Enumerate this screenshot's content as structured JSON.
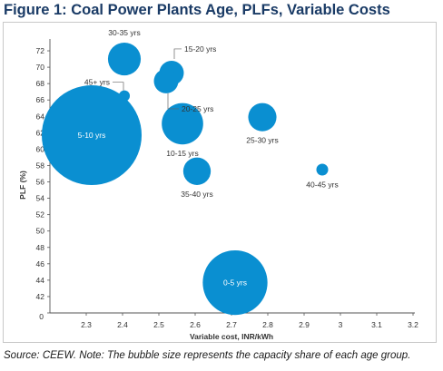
{
  "figure": {
    "title": "Figure 1: Coal Power Plants Age, PLFs, Variable Costs",
    "source_note": "Source: CEEW. Note: The bubble size represents the capacity share of each age group."
  },
  "chart_data": {
    "type": "scatter",
    "variant": "bubble",
    "title": "",
    "xlabel": "Variable cost, INR/kWh",
    "ylabel": "PLF (%)",
    "xlim": [
      2.2,
      3.2
    ],
    "ylim": [
      40,
      73
    ],
    "x_ticks": [
      2.3,
      2.4,
      2.5,
      2.6,
      2.7,
      2.8,
      2.9,
      3.0,
      3.1,
      3.2
    ],
    "x_tick_labels": [
      "2.3",
      "2.4",
      "2.5",
      "2.6",
      "2.7",
      "2.8",
      "2.9",
      "3",
      "3.1",
      "3.2"
    ],
    "y_ticks": [
      40,
      42,
      44,
      46,
      48,
      50,
      52,
      54,
      56,
      58,
      60,
      62,
      64,
      66,
      68,
      70,
      72
    ],
    "y_tick_labels": [
      "",
      "42",
      "44",
      "46",
      "48",
      "50",
      "52",
      "54",
      "56",
      "58",
      "60",
      "62",
      "64",
      "66",
      "68",
      "70",
      "72"
    ],
    "origin_label": "0",
    "grid": false,
    "bubble_color": "#0a8fd1",
    "label_color_inside": "#ffffff",
    "label_color_outside": "#333333",
    "points": [
      {
        "label": "30-35 yrs",
        "x": 2.405,
        "y": 71.0,
        "size": 2.7,
        "label_pos": "above"
      },
      {
        "label": "15-20 yrs",
        "x": 2.535,
        "y": 69.3,
        "size": 1.5,
        "label_pos": "callout-upper-right"
      },
      {
        "label": "20-25 yrs",
        "x": 2.52,
        "y": 68.3,
        "size": 1.5,
        "label_pos": "callout-lower-right"
      },
      {
        "label": "45+ yrs",
        "x": 2.405,
        "y": 66.5,
        "size": 0.3,
        "label_pos": "callout-upper-left"
      },
      {
        "label": "5-10 yrs",
        "x": 2.315,
        "y": 61.7,
        "size": 25.0,
        "label_pos": "inside"
      },
      {
        "label": "10-15 yrs",
        "x": 2.565,
        "y": 63.1,
        "size": 4.3,
        "label_pos": "below"
      },
      {
        "label": "25-30 yrs",
        "x": 2.785,
        "y": 63.9,
        "size": 2.0,
        "label_pos": "below"
      },
      {
        "label": "35-40 yrs",
        "x": 2.605,
        "y": 57.3,
        "size": 1.9,
        "label_pos": "below"
      },
      {
        "label": "40-45 yrs",
        "x": 2.95,
        "y": 57.5,
        "size": 0.35,
        "label_pos": "below"
      },
      {
        "label": "0-5 yrs",
        "x": 2.71,
        "y": 43.7,
        "size": 10.5,
        "label_pos": "inside"
      }
    ]
  }
}
